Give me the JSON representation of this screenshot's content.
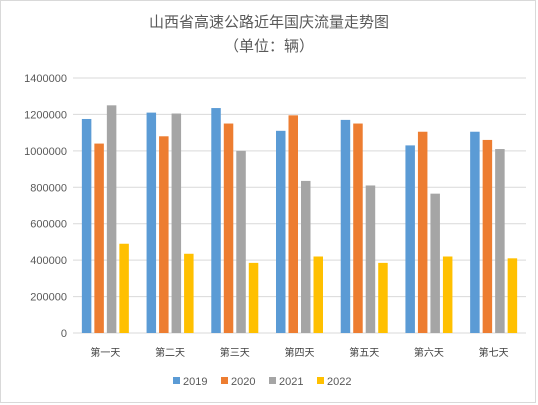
{
  "chart_data": {
    "type": "bar",
    "title": "山西省高速公路近年国庆流量走势图",
    "subtitle": "（单位：辆）",
    "categories": [
      "第一天",
      "第二天",
      "第三天",
      "第四天",
      "第五天",
      "第六天",
      "第七天"
    ],
    "series": [
      {
        "name": "2019",
        "color": "#5b9bd5",
        "values": [
          1175000,
          1210000,
          1235000,
          1110000,
          1170000,
          1030000,
          1105000
        ]
      },
      {
        "name": "2020",
        "color": "#ed7d31",
        "values": [
          1040000,
          1080000,
          1150000,
          1195000,
          1150000,
          1105000,
          1060000
        ]
      },
      {
        "name": "2021",
        "color": "#a5a5a5",
        "values": [
          1250000,
          1205000,
          1000000,
          835000,
          810000,
          765000,
          1010000
        ]
      },
      {
        "name": "2022",
        "color": "#ffc000",
        "values": [
          490000,
          435000,
          385000,
          420000,
          385000,
          420000,
          410000
        ]
      }
    ],
    "ylim": [
      0,
      1400000
    ],
    "yticks": [
      0,
      200000,
      400000,
      600000,
      800000,
      1000000,
      1200000,
      1400000
    ],
    "grid": true,
    "legend_position": "bottom"
  }
}
